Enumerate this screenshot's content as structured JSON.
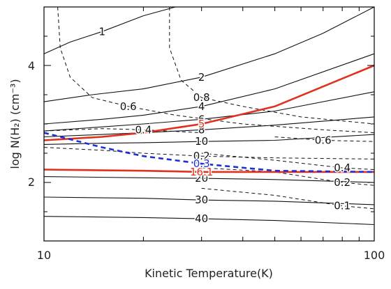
{
  "chart_data": {
    "type": "contour",
    "title": "",
    "xlabel": "Kinetic Temperature(K)",
    "ylabel": "log N(H₂) (cm⁻³)",
    "x_scale": "log",
    "xlim": [
      10,
      100
    ],
    "ylim": [
      1,
      5
    ],
    "x_ticks": [
      10,
      100
    ],
    "x_tick_labels": [
      "10",
      "100"
    ],
    "y_ticks": [
      2,
      4
    ],
    "y_tick_labels": [
      "2",
      "4"
    ],
    "colors": {
      "black": "#111111",
      "red": "#e0301e",
      "blue": "#1f2fd6",
      "axis": "#000000"
    },
    "series": [
      {
        "label": "1",
        "style": "solid-black",
        "points": [
          [
            10,
            4.2
          ],
          [
            12,
            4.4
          ],
          [
            15,
            4.58
          ],
          [
            20,
            4.85
          ],
          [
            25,
            5.0
          ]
        ]
      },
      {
        "label": "2",
        "style": "solid-black",
        "points": [
          [
            10,
            3.38
          ],
          [
            14,
            3.5
          ],
          [
            20,
            3.6
          ],
          [
            30,
            3.8
          ],
          [
            50,
            4.2
          ],
          [
            70,
            4.55
          ],
          [
            100,
            5.0
          ]
        ]
      },
      {
        "label": "4",
        "style": "solid-black",
        "points": [
          [
            10,
            3.0
          ],
          [
            15,
            3.08
          ],
          [
            20,
            3.15
          ],
          [
            30,
            3.3
          ],
          [
            50,
            3.6
          ],
          [
            100,
            4.2
          ]
        ]
      },
      {
        "label": "6",
        "style": "solid-black",
        "points": [
          [
            10,
            2.88
          ],
          [
            15,
            2.95
          ],
          [
            20,
            3.0
          ],
          [
            30,
            3.08
          ],
          [
            50,
            3.22
          ],
          [
            100,
            3.55
          ]
        ]
      },
      {
        "label": "8",
        "style": "solid-black",
        "points": [
          [
            10,
            2.78
          ],
          [
            15,
            2.82
          ],
          [
            20,
            2.85
          ],
          [
            30,
            2.9
          ],
          [
            50,
            2.98
          ],
          [
            100,
            3.12
          ]
        ]
      },
      {
        "label": "10",
        "style": "solid-black",
        "points": [
          [
            10,
            2.65
          ],
          [
            15,
            2.67
          ],
          [
            20,
            2.68
          ],
          [
            30,
            2.7
          ],
          [
            50,
            2.72
          ],
          [
            100,
            2.82
          ]
        ]
      },
      {
        "label": "20",
        "style": "solid-black",
        "points": [
          [
            10,
            2.1
          ],
          [
            20,
            2.08
          ],
          [
            30,
            2.07
          ],
          [
            50,
            2.05
          ],
          [
            100,
            2.0
          ]
        ]
      },
      {
        "label": "30",
        "style": "solid-black",
        "points": [
          [
            10,
            1.75
          ],
          [
            20,
            1.73
          ],
          [
            30,
            1.7
          ],
          [
            50,
            1.68
          ],
          [
            100,
            1.62
          ]
        ]
      },
      {
        "label": "40",
        "style": "solid-black",
        "points": [
          [
            10,
            1.42
          ],
          [
            20,
            1.4
          ],
          [
            30,
            1.38
          ],
          [
            50,
            1.35
          ],
          [
            100,
            1.28
          ]
        ]
      },
      {
        "label": "0.6",
        "style": "dashed-black",
        "points": [
          [
            11,
            5.0
          ],
          [
            11.2,
            4.3
          ],
          [
            12,
            3.8
          ],
          [
            14,
            3.45
          ],
          [
            18,
            3.3
          ],
          [
            25,
            3.15
          ],
          [
            40,
            3.0
          ],
          [
            70,
            2.9
          ],
          [
            100,
            2.85
          ]
        ]
      },
      {
        "label": "0.4",
        "style": "dashed-black",
        "points": [
          [
            10,
            2.88
          ],
          [
            15,
            2.92
          ],
          [
            20,
            2.9
          ],
          [
            30,
            2.85
          ]
        ]
      },
      {
        "label": "0.2",
        "style": "dashed-black",
        "points": [
          [
            10,
            2.6
          ],
          [
            15,
            2.55
          ],
          [
            20,
            2.5
          ],
          [
            30,
            2.45
          ],
          [
            50,
            2.42
          ],
          [
            100,
            2.4
          ]
        ]
      },
      {
        "label": "0.8",
        "style": "dashed-black",
        "points": [
          [
            24,
            5.0
          ],
          [
            24,
            4.3
          ],
          [
            26,
            3.75
          ],
          [
            30,
            3.45
          ],
          [
            40,
            3.3
          ],
          [
            60,
            3.12
          ],
          [
            100,
            3.0
          ]
        ]
      },
      {
        "label": "0.6",
        "style": "dashed-black",
        "points": [
          [
            50,
            2.78
          ],
          [
            70,
            2.72
          ],
          [
            100,
            2.7
          ]
        ]
      },
      {
        "label": "0.4",
        "style": "dashed-black",
        "points": [
          [
            30,
            2.5
          ],
          [
            50,
            2.38
          ],
          [
            80,
            2.25
          ],
          [
            100,
            2.22
          ]
        ]
      },
      {
        "label": "0.2",
        "style": "dashed-black",
        "points": [
          [
            30,
            2.25
          ],
          [
            50,
            2.18
          ],
          [
            80,
            2.0
          ],
          [
            100,
            1.95
          ]
        ]
      },
      {
        "label": "0.1",
        "style": "dashed-black",
        "points": [
          [
            30,
            1.9
          ],
          [
            50,
            1.78
          ],
          [
            80,
            1.6
          ],
          [
            100,
            1.55
          ]
        ]
      },
      {
        "label": "5",
        "style": "thick-red",
        "points": [
          [
            10,
            2.72
          ],
          [
            15,
            2.78
          ],
          [
            20,
            2.85
          ],
          [
            30,
            3.0
          ],
          [
            50,
            3.3
          ],
          [
            100,
            4.0
          ]
        ]
      },
      {
        "label": "16.1",
        "style": "thick-red",
        "points": [
          [
            10,
            2.22
          ],
          [
            20,
            2.2
          ],
          [
            30,
            2.18
          ],
          [
            50,
            2.18
          ],
          [
            100,
            2.18
          ]
        ]
      },
      {
        "label": "0.3",
        "style": "thick-blue-dashed",
        "points": [
          [
            10,
            2.85
          ],
          [
            15,
            2.6
          ],
          [
            20,
            2.45
          ],
          [
            30,
            2.32
          ],
          [
            50,
            2.2
          ],
          [
            100,
            2.18
          ]
        ]
      }
    ]
  }
}
